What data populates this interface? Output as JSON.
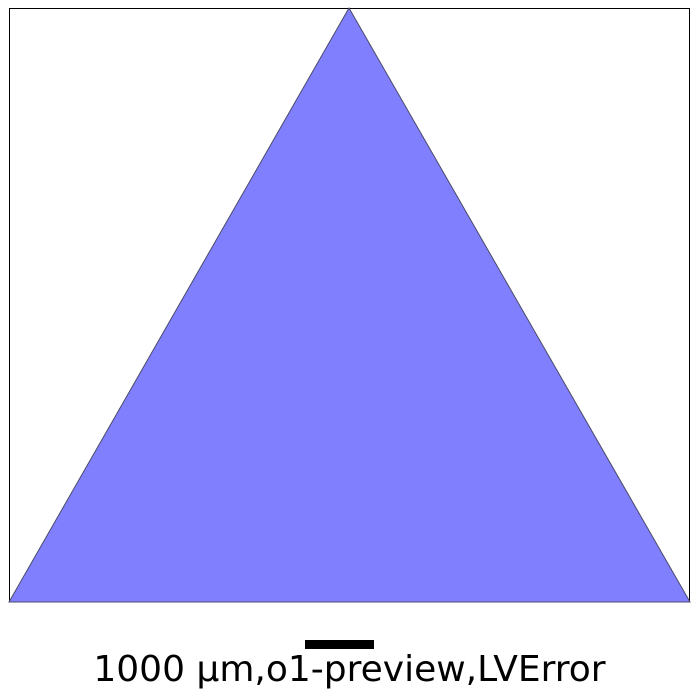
{
  "diagram": {
    "shape": "equilateral-triangle",
    "fill_color": "#8080ff",
    "edge_color": "#4a4a6a",
    "frame_color": "#000000"
  },
  "scale_bar": {
    "color": "#000000"
  },
  "caption": {
    "text": "1000 μm,o1-preview,LVError"
  }
}
